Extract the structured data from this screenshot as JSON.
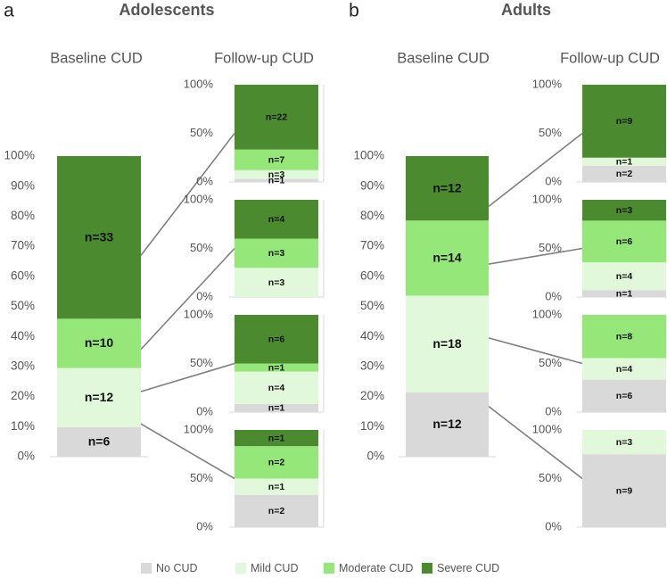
{
  "colors": {
    "no_cud": "#d9d9d9",
    "mild_cud": "#e2f8da",
    "moderate_cud": "#96e77a",
    "severe_cud": "#4b8a2f",
    "connector": "#7f7f7f",
    "axis": "#d9d9d9"
  },
  "legend": {
    "items": [
      {
        "key": "no_cud",
        "label": "No CUD"
      },
      {
        "key": "mild_cud",
        "label": "Mild CUD"
      },
      {
        "key": "moderate_cud",
        "label": "Moderate CUD"
      },
      {
        "key": "severe_cud",
        "label": "Severe CUD"
      }
    ]
  },
  "chart_data": [
    {
      "type": "bar",
      "stacked": true,
      "normalized": true,
      "panel_letter": "a",
      "title": "Adolescents",
      "baseline": {
        "title": "Baseline CUD",
        "y_ticks": [
          "100%",
          "90%",
          "80%",
          "70%",
          "60%",
          "50%",
          "40%",
          "30%",
          "20%",
          "10%",
          "0%"
        ],
        "segments": [
          {
            "category": "No CUD",
            "key": "no_cud",
            "n": 6,
            "label": "n=6"
          },
          {
            "category": "Mild CUD",
            "key": "mild_cud",
            "n": 12,
            "label": "n=12"
          },
          {
            "category": "Moderate CUD",
            "key": "moderate_cud",
            "n": 10,
            "label": "n=10"
          },
          {
            "category": "Severe CUD",
            "key": "severe_cud",
            "n": 33,
            "label": "n=33"
          }
        ]
      },
      "followup": {
        "title": "Follow-up CUD",
        "y_ticks": [
          "100%",
          "50%",
          "0%"
        ],
        "groups": [
          {
            "from": "Severe CUD",
            "segments": [
              {
                "key": "no_cud",
                "n": 1,
                "label": "n=1"
              },
              {
                "key": "mild_cud",
                "n": 3,
                "label": "n=3"
              },
              {
                "key": "moderate_cud",
                "n": 7,
                "label": "n=7"
              },
              {
                "key": "severe_cud",
                "n": 22,
                "label": "n=22"
              }
            ]
          },
          {
            "from": "Moderate CUD",
            "segments": [
              {
                "key": "mild_cud",
                "n": 3,
                "label": "n=3"
              },
              {
                "key": "moderate_cud",
                "n": 3,
                "label": "n=3"
              },
              {
                "key": "severe_cud",
                "n": 4,
                "label": "n=4"
              }
            ]
          },
          {
            "from": "Mild CUD",
            "segments": [
              {
                "key": "no_cud",
                "n": 1,
                "label": "n=1"
              },
              {
                "key": "mild_cud",
                "n": 4,
                "label": "n=4"
              },
              {
                "key": "moderate_cud",
                "n": 1,
                "label": "n=1"
              },
              {
                "key": "severe_cud",
                "n": 6,
                "label": "n=6"
              }
            ]
          },
          {
            "from": "No CUD",
            "segments": [
              {
                "key": "no_cud",
                "n": 2,
                "label": "n=2"
              },
              {
                "key": "mild_cud",
                "n": 1,
                "label": "n=1"
              },
              {
                "key": "moderate_cud",
                "n": 2,
                "label": "n=2"
              },
              {
                "key": "severe_cud",
                "n": 1,
                "label": "n=1"
              }
            ]
          }
        ]
      }
    },
    {
      "type": "bar",
      "stacked": true,
      "normalized": true,
      "panel_letter": "b",
      "title": "Adults",
      "baseline": {
        "title": "Baseline CUD",
        "y_ticks": [
          "100%",
          "90%",
          "80%",
          "70%",
          "60%",
          "50%",
          "40%",
          "30%",
          "20%",
          "10%",
          "0%"
        ],
        "segments": [
          {
            "category": "No CUD",
            "key": "no_cud",
            "n": 12,
            "label": "n=12"
          },
          {
            "category": "Mild CUD",
            "key": "mild_cud",
            "n": 18,
            "label": "n=18"
          },
          {
            "category": "Moderate CUD",
            "key": "moderate_cud",
            "n": 14,
            "label": "n=14"
          },
          {
            "category": "Severe CUD",
            "key": "severe_cud",
            "n": 12,
            "label": "n=12"
          }
        ]
      },
      "followup": {
        "title": "Follow-up CUD",
        "y_ticks": [
          "100%",
          "50%",
          "0%"
        ],
        "groups": [
          {
            "from": "Severe CUD",
            "segments": [
              {
                "key": "no_cud",
                "n": 2,
                "label": "n=2"
              },
              {
                "key": "mild_cud",
                "n": 1,
                "label": "n=1"
              },
              {
                "key": "severe_cud",
                "n": 9,
                "label": "n=9"
              }
            ]
          },
          {
            "from": "Moderate CUD",
            "segments": [
              {
                "key": "no_cud",
                "n": 1,
                "label": "n=1"
              },
              {
                "key": "mild_cud",
                "n": 4,
                "label": "n=4"
              },
              {
                "key": "moderate_cud",
                "n": 6,
                "label": "n=6"
              },
              {
                "key": "severe_cud",
                "n": 3,
                "label": "n=3"
              }
            ]
          },
          {
            "from": "Mild CUD",
            "segments": [
              {
                "key": "no_cud",
                "n": 6,
                "label": "n=6"
              },
              {
                "key": "mild_cud",
                "n": 4,
                "label": "n=4"
              },
              {
                "key": "moderate_cud",
                "n": 8,
                "label": "n=8"
              }
            ]
          },
          {
            "from": "No CUD",
            "segments": [
              {
                "key": "no_cud",
                "n": 9,
                "label": "n=9"
              },
              {
                "key": "mild_cud",
                "n": 3,
                "label": "n=3"
              }
            ]
          }
        ]
      }
    }
  ]
}
